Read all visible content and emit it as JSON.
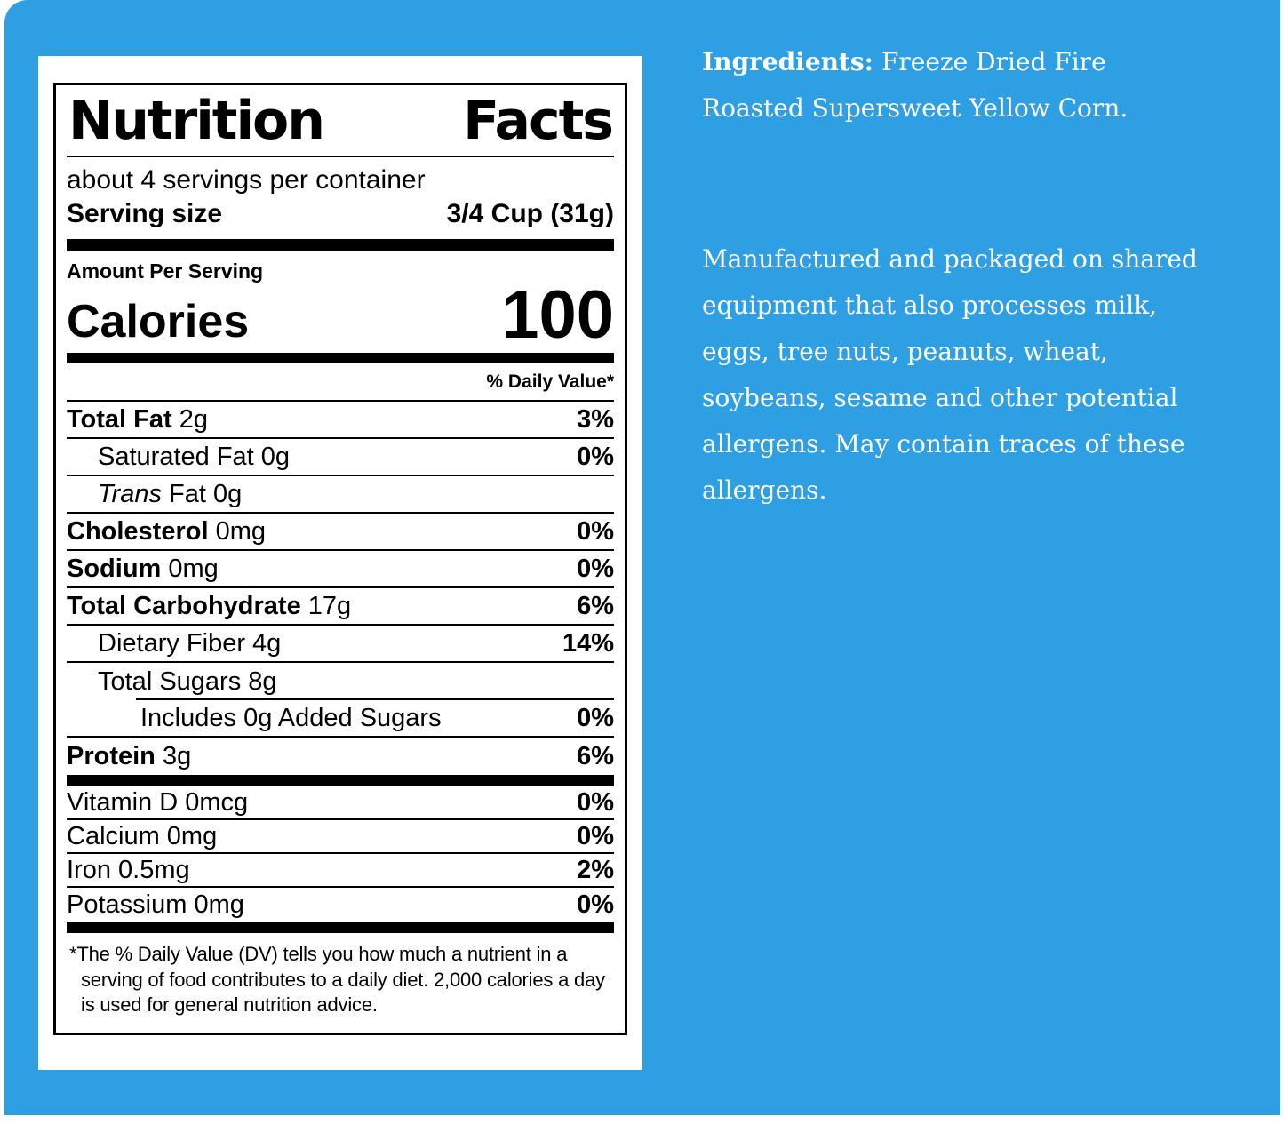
{
  "colors": {
    "panel_blue": "#2F9FE4",
    "card_white": "#ffffff",
    "label_ink": "#000000",
    "right_text": "#ffffff"
  },
  "label": {
    "title_word1": "Nutrition",
    "title_word2": "Facts",
    "servings_per_container": "about 4 servings per container",
    "serving_size_label": "Serving size",
    "serving_size_value": "3/4 Cup (31g)",
    "amount_per_serving": "Amount Per Serving",
    "calories_label": "Calories",
    "calories_value": "100",
    "daily_value_header": "% Daily Value*",
    "nutrient_rows": [
      {
        "parts": [
          [
            "b",
            "Total Fat "
          ],
          [
            "r",
            "2g"
          ]
        ],
        "dv": "3%",
        "indent": 0
      },
      {
        "parts": [
          [
            "r",
            "Saturated Fat 0g"
          ]
        ],
        "dv": "0%",
        "indent": 1
      },
      {
        "parts": [
          [
            "i",
            "Trans"
          ],
          [
            "r",
            " Fat 0g"
          ]
        ],
        "dv": "",
        "indent": 1
      },
      {
        "parts": [
          [
            "b",
            "Cholesterol "
          ],
          [
            "r",
            "0mg"
          ]
        ],
        "dv": "0%",
        "indent": 0
      },
      {
        "parts": [
          [
            "b",
            "Sodium "
          ],
          [
            "r",
            "0mg"
          ]
        ],
        "dv": "0%",
        "indent": 0
      },
      {
        "parts": [
          [
            "b",
            "Total Carbohydrate "
          ],
          [
            "r",
            "17g"
          ]
        ],
        "dv": "6%",
        "indent": 0
      },
      {
        "parts": [
          [
            "r",
            "Dietary Fiber 4g"
          ]
        ],
        "dv": "14%",
        "indent": 1
      },
      {
        "parts": [
          [
            "r",
            "Total Sugars 8g"
          ]
        ],
        "dv": "",
        "indent": 1,
        "partial_sep": true
      },
      {
        "parts": [
          [
            "r",
            "Includes 0g Added Sugars"
          ]
        ],
        "dv": "0%",
        "indent": 2
      },
      {
        "parts": [
          [
            "b",
            "Protein "
          ],
          [
            "r",
            "3g"
          ]
        ],
        "dv": "6%",
        "indent": 0,
        "last": true
      }
    ],
    "vitamin_rows": [
      {
        "parts": [
          [
            "r",
            "Vitamin D 0mcg"
          ]
        ],
        "dv": "0%"
      },
      {
        "parts": [
          [
            "r",
            "Calcium 0mg"
          ]
        ],
        "dv": "0%"
      },
      {
        "parts": [
          [
            "r",
            "Iron 0.5mg"
          ]
        ],
        "dv": "2%"
      },
      {
        "parts": [
          [
            "r",
            "Potassium 0mg"
          ]
        ],
        "dv": "0%",
        "last": true
      }
    ],
    "footnote": "*The % Daily Value (DV) tells you how much a nutrient in a serving of food contributes to a daily diet. 2,000 calories a day is used for general nutrition advice."
  },
  "right_panel": {
    "ingredients_label": "Ingredients:",
    "ingredients_text": "Freeze Dried Fire Roasted Supersweet Yellow Corn.",
    "allergen_text": "Manufactured and packaged on shared equipment that also processes milk, eggs, tree nuts, peanuts, wheat, soybeans, sesame and other potential allergens. May contain traces of these allergens."
  }
}
